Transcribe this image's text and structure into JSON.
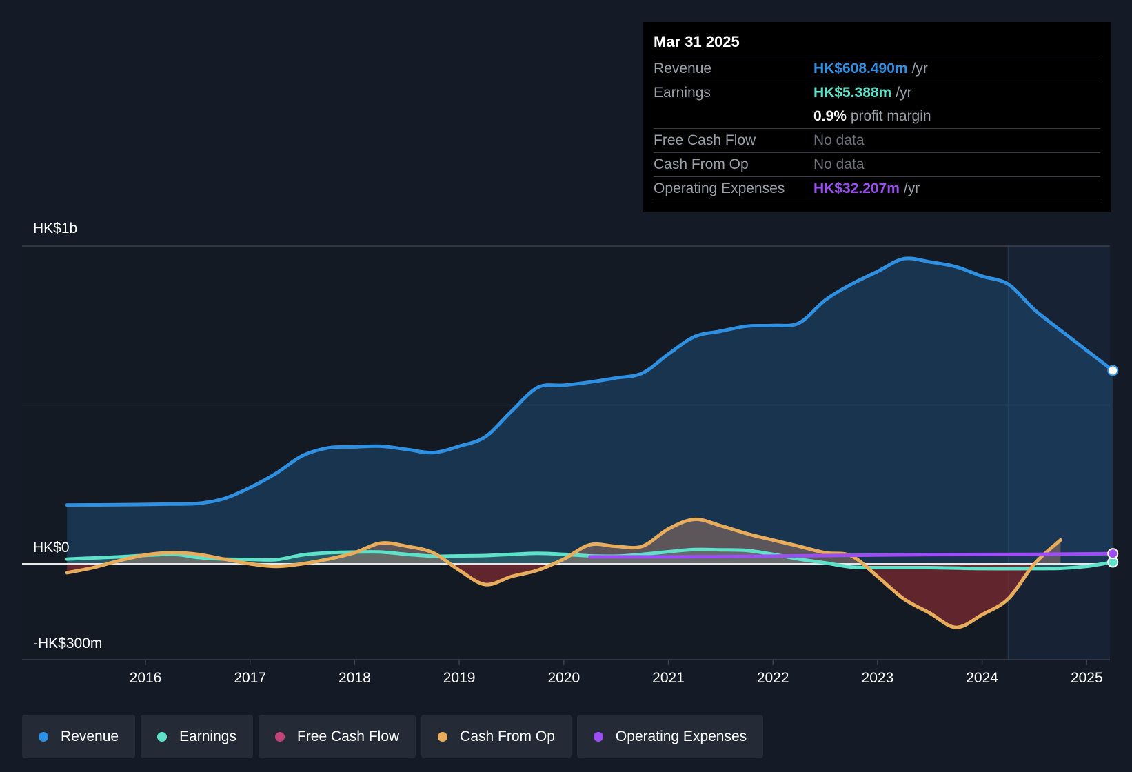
{
  "chart_data": {
    "type": "line",
    "title": "",
    "xlabel": "",
    "ylabel": "",
    "ylim": [
      -300,
      1000
    ],
    "y_tick_labels": [
      "HK$1b",
      "HK$0",
      "-HK$300m"
    ],
    "x_tick_labels": [
      "2016",
      "2017",
      "2018",
      "2019",
      "2020",
      "2021",
      "2022",
      "2023",
      "2024",
      "2025"
    ],
    "forecast_start": 2024.25,
    "series": [
      {
        "name": "Revenue",
        "color": "#2f8fe0",
        "fill": true,
        "points": [
          [
            2015.25,
            185
          ],
          [
            2015.75,
            186
          ],
          [
            2016.25,
            188
          ],
          [
            2016.5,
            190
          ],
          [
            2016.75,
            205
          ],
          [
            2017.0,
            240
          ],
          [
            2017.25,
            285
          ],
          [
            2017.5,
            340
          ],
          [
            2017.75,
            365
          ],
          [
            2018.0,
            368
          ],
          [
            2018.25,
            370
          ],
          [
            2018.5,
            360
          ],
          [
            2018.75,
            350
          ],
          [
            2019.0,
            370
          ],
          [
            2019.25,
            400
          ],
          [
            2019.5,
            480
          ],
          [
            2019.75,
            555
          ],
          [
            2020.0,
            562
          ],
          [
            2020.25,
            572
          ],
          [
            2020.5,
            585
          ],
          [
            2020.75,
            600
          ],
          [
            2021.0,
            660
          ],
          [
            2021.25,
            715
          ],
          [
            2021.5,
            732
          ],
          [
            2021.75,
            748
          ],
          [
            2022.0,
            750
          ],
          [
            2022.25,
            758
          ],
          [
            2022.5,
            830
          ],
          [
            2022.75,
            880
          ],
          [
            2023.0,
            920
          ],
          [
            2023.25,
            960
          ],
          [
            2023.5,
            950
          ],
          [
            2023.75,
            935
          ],
          [
            2024.0,
            905
          ],
          [
            2024.25,
            880
          ],
          [
            2024.5,
            800
          ],
          [
            2024.75,
            735
          ],
          [
            2025.25,
            608.49
          ]
        ]
      },
      {
        "name": "Earnings",
        "color": "#5fe0c8",
        "fill": true,
        "points": [
          [
            2015.25,
            15
          ],
          [
            2015.75,
            22
          ],
          [
            2016.25,
            30
          ],
          [
            2016.5,
            20
          ],
          [
            2016.75,
            15
          ],
          [
            2017.0,
            14
          ],
          [
            2017.25,
            13
          ],
          [
            2017.5,
            28
          ],
          [
            2017.75,
            35
          ],
          [
            2018.0,
            37
          ],
          [
            2018.25,
            37
          ],
          [
            2018.5,
            30
          ],
          [
            2018.75,
            24
          ],
          [
            2019.0,
            25
          ],
          [
            2019.25,
            26
          ],
          [
            2019.5,
            30
          ],
          [
            2019.75,
            33
          ],
          [
            2020.0,
            30
          ],
          [
            2020.25,
            25
          ],
          [
            2020.5,
            24
          ],
          [
            2020.75,
            30
          ],
          [
            2021.0,
            38
          ],
          [
            2021.25,
            45
          ],
          [
            2021.5,
            44
          ],
          [
            2021.75,
            42
          ],
          [
            2022.0,
            30
          ],
          [
            2022.25,
            15
          ],
          [
            2022.5,
            3
          ],
          [
            2022.75,
            -10
          ],
          [
            2023.0,
            -12
          ],
          [
            2023.5,
            -12
          ],
          [
            2024.0,
            -15
          ],
          [
            2024.5,
            -15
          ],
          [
            2024.75,
            -14
          ],
          [
            2025.0,
            -8
          ],
          [
            2025.25,
            5.388
          ]
        ]
      },
      {
        "name": "Free Cash Flow",
        "color": "#c0437a",
        "fill": false,
        "points": []
      },
      {
        "name": "Cash From Op",
        "color": "#e8ad5c",
        "fill": true,
        "points": [
          [
            2015.25,
            -28
          ],
          [
            2015.5,
            -12
          ],
          [
            2015.75,
            10
          ],
          [
            2016.0,
            28
          ],
          [
            2016.25,
            35
          ],
          [
            2016.5,
            30
          ],
          [
            2016.75,
            15
          ],
          [
            2017.0,
            0
          ],
          [
            2017.25,
            -8
          ],
          [
            2017.5,
            0
          ],
          [
            2017.75,
            15
          ],
          [
            2018.0,
            35
          ],
          [
            2018.25,
            65
          ],
          [
            2018.5,
            55
          ],
          [
            2018.75,
            35
          ],
          [
            2019.0,
            -20
          ],
          [
            2019.25,
            -65
          ],
          [
            2019.5,
            -40
          ],
          [
            2019.75,
            -20
          ],
          [
            2020.0,
            15
          ],
          [
            2020.25,
            60
          ],
          [
            2020.5,
            55
          ],
          [
            2020.75,
            55
          ],
          [
            2021.0,
            110
          ],
          [
            2021.25,
            140
          ],
          [
            2021.5,
            120
          ],
          [
            2021.75,
            95
          ],
          [
            2022.0,
            75
          ],
          [
            2022.25,
            55
          ],
          [
            2022.5,
            35
          ],
          [
            2022.75,
            25
          ],
          [
            2023.0,
            -40
          ],
          [
            2023.25,
            -110
          ],
          [
            2023.5,
            -155
          ],
          [
            2023.75,
            -200
          ],
          [
            2024.0,
            -160
          ],
          [
            2024.25,
            -110
          ],
          [
            2024.5,
            0
          ],
          [
            2024.75,
            75
          ]
        ]
      },
      {
        "name": "Operating Expenses",
        "color": "#9b4ff0",
        "fill": false,
        "points": [
          [
            2020.25,
            22
          ],
          [
            2021.0,
            22
          ],
          [
            2022.0,
            24
          ],
          [
            2022.75,
            27
          ],
          [
            2023.5,
            29
          ],
          [
            2024.5,
            30
          ],
          [
            2025.25,
            32.207
          ]
        ]
      }
    ]
  },
  "tooltip": {
    "date": "Mar 31 2025",
    "rows": [
      {
        "label": "Revenue",
        "value": "HK$608.490m",
        "unit": "/yr",
        "color": "#2f8fe0"
      },
      {
        "label": "Earnings",
        "value": "HK$5.388m",
        "unit": "/yr",
        "color": "#5fe0c8"
      },
      {
        "label": "",
        "value": "0.9%",
        "unit": "profit margin",
        "color": "#ffffff"
      },
      {
        "label": "Free Cash Flow",
        "value": "No data",
        "unit": "",
        "color": ""
      },
      {
        "label": "Cash From Op",
        "value": "No data",
        "unit": "",
        "color": ""
      },
      {
        "label": "Operating Expenses",
        "value": "HK$32.207m",
        "unit": "/yr",
        "color": "#9b4ff0"
      }
    ]
  },
  "legend": [
    {
      "label": "Revenue",
      "color": "#2f8fe0"
    },
    {
      "label": "Earnings",
      "color": "#5fe0c8"
    },
    {
      "label": "Free Cash Flow",
      "color": "#c0437a"
    },
    {
      "label": "Cash From Op",
      "color": "#e8ad5c"
    },
    {
      "label": "Operating Expenses",
      "color": "#9b4ff0"
    }
  ]
}
